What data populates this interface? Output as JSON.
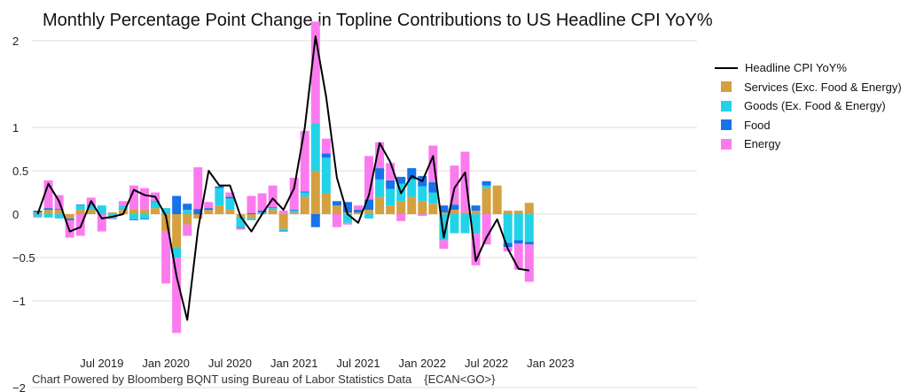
{
  "chart_data": {
    "type": "bar",
    "stacked": true,
    "title": "Monthly Percentage Point Change in Topline Contributions to US Headline CPI YoY%",
    "ylim": [
      -2.2,
      2.4
    ],
    "yticks": [
      2,
      1,
      0.5,
      0,
      -0.5,
      -1,
      -2
    ],
    "ytick_labels": [
      "2",
      "1",
      "0.5",
      "0",
      "−0.5",
      "−1",
      "−2"
    ],
    "xtick_labels": [
      {
        "index": 6,
        "label": "Jul 2019"
      },
      {
        "index": 12,
        "label": "Jan 2020"
      },
      {
        "index": 18,
        "label": "Jul 2020"
      },
      {
        "index": 24,
        "label": "Jan 2021"
      },
      {
        "index": 30,
        "label": "Jul 2021"
      },
      {
        "index": 36,
        "label": "Jan 2022"
      },
      {
        "index": 42,
        "label": "Jul 2022"
      },
      {
        "index": 48,
        "label": "Jan 2023"
      }
    ],
    "legend_position": "right",
    "line": {
      "name": "Headline CPI YoY%",
      "color": "#000000",
      "values": [
        0.0,
        0.35,
        0.15,
        -0.2,
        -0.15,
        0.15,
        -0.05,
        -0.03,
        0.0,
        0.28,
        0.22,
        0.2,
        -0.02,
        -0.72,
        -1.22,
        -0.18,
        0.5,
        0.33,
        0.33,
        -0.03,
        -0.2,
        0.0,
        0.18,
        0.05,
        0.3,
        1.0,
        2.05,
        1.35,
        0.42,
        0.0,
        -0.1,
        0.22,
        0.82,
        0.6,
        0.24,
        0.44,
        0.38,
        0.67,
        -0.27,
        0.3,
        0.48,
        -0.54,
        -0.27,
        -0.06,
        -0.4,
        -0.63,
        -0.65
      ]
    },
    "series": [
      {
        "name": "Services (Exc. Food & Energy)",
        "color": "#d4a040",
        "values": [
          0.02,
          0.05,
          0.05,
          -0.05,
          0.05,
          0.05,
          0.0,
          0.02,
          0.05,
          0.06,
          0.05,
          0.07,
          -0.2,
          -0.38,
          -0.12,
          -0.05,
          0.05,
          0.1,
          0.05,
          -0.03,
          -0.05,
          0.0,
          0.05,
          -0.17,
          0.02,
          0.2,
          0.5,
          0.24,
          0.1,
          0.02,
          0.02,
          0.05,
          0.2,
          0.1,
          0.15,
          0.2,
          0.15,
          0.12,
          0.02,
          0.05,
          0.02,
          0.04,
          0.3,
          0.33,
          0.04,
          0.04,
          0.13
        ]
      },
      {
        "name": "Goods (Ex. Food & Energy)",
        "color": "#22d3e8",
        "values": [
          -0.03,
          -0.04,
          -0.05,
          0.0,
          0.05,
          0.05,
          0.1,
          -0.05,
          0.05,
          -0.06,
          -0.05,
          0.07,
          0.07,
          -0.12,
          0.05,
          0.0,
          0.0,
          0.2,
          0.13,
          -0.12,
          -0.02,
          0.02,
          0.02,
          -0.02,
          0.02,
          0.05,
          0.55,
          0.41,
          0.0,
          -0.1,
          0.0,
          -0.05,
          0.2,
          0.19,
          0.2,
          0.2,
          0.17,
          0.13,
          -0.3,
          -0.22,
          -0.22,
          -0.22,
          0.03,
          0.0,
          -0.33,
          -0.3,
          -0.32
        ]
      },
      {
        "name": "Food",
        "color": "#1673e8",
        "values": [
          0.02,
          0.02,
          0.01,
          -0.02,
          0.01,
          0.01,
          0.0,
          0.0,
          0.0,
          -0.01,
          -0.01,
          0.01,
          0.0,
          0.21,
          0.07,
          0.06,
          0.02,
          0.02,
          0.02,
          -0.01,
          0.01,
          0.02,
          0.01,
          -0.01,
          0.01,
          0.01,
          -0.15,
          0.05,
          0.05,
          0.12,
          0.03,
          0.12,
          0.13,
          0.1,
          0.08,
          0.13,
          0.12,
          0.12,
          0.08,
          0.06,
          0.0,
          0.06,
          0.05,
          0.0,
          -0.05,
          -0.04,
          -0.03
        ]
      },
      {
        "name": "Energy",
        "color": "#fb7bef",
        "values": [
          -0.01,
          0.32,
          0.16,
          -0.2,
          -0.25,
          0.08,
          -0.2,
          -0.01,
          0.05,
          0.27,
          0.25,
          0.1,
          -0.6,
          -0.87,
          -0.13,
          0.48,
          0.07,
          0.0,
          0.05,
          -0.02,
          0.2,
          0.2,
          0.25,
          0.04,
          0.37,
          0.7,
          1.17,
          0.17,
          -0.15,
          -0.02,
          0.05,
          0.5,
          0.3,
          0.2,
          -0.08,
          0.0,
          -0.02,
          0.42,
          -0.1,
          0.45,
          0.7,
          -0.37,
          -0.35,
          0.0,
          -0.05,
          -0.3,
          -0.43
        ]
      }
    ]
  },
  "legend": [
    {
      "kind": "line",
      "label": "Headline CPI YoY%",
      "color": "#000000"
    },
    {
      "kind": "swatch",
      "label": "Services (Exc. Food & Energy)",
      "color": "#d4a040"
    },
    {
      "kind": "swatch",
      "label": "Goods (Ex. Food & Energy)",
      "color": "#22d3e8"
    },
    {
      "kind": "swatch",
      "label": "Food",
      "color": "#1673e8"
    },
    {
      "kind": "swatch",
      "label": "Energy",
      "color": "#fb7bef"
    }
  ],
  "footer": {
    "credit": "Chart Powered by Bloomberg BQNT using Bureau of Labor Statistics Data",
    "code": "{ECAN<GO>}"
  }
}
